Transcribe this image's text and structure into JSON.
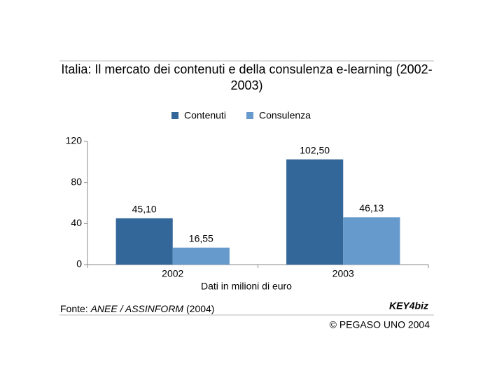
{
  "chart_data": {
    "type": "bar",
    "title": "Italia: Il mercato dei contenuti e della consulenza e-learning (2002-2003)",
    "categories": [
      "2002",
      "2003"
    ],
    "series": [
      {
        "name": "Contenuti",
        "color": "#336699",
        "values": [
          45.1,
          102.5
        ],
        "value_labels": [
          "45,10",
          "102,50"
        ]
      },
      {
        "name": "Consulenza",
        "color": "#6699cc",
        "values": [
          16.55,
          46.13
        ],
        "value_labels": [
          "16,55",
          "46,13"
        ]
      }
    ],
    "ylim": [
      0,
      120
    ],
    "yticks": [
      0,
      40,
      80,
      120
    ],
    "xlabel": "Dati in milioni di euro",
    "source": {
      "prefix": "Fonte:",
      "name": "ANEE / ASSINFORM",
      "year": "(2004)"
    },
    "logo": "KEY4biz",
    "copyright": "© PEGASO UNO 2004"
  }
}
